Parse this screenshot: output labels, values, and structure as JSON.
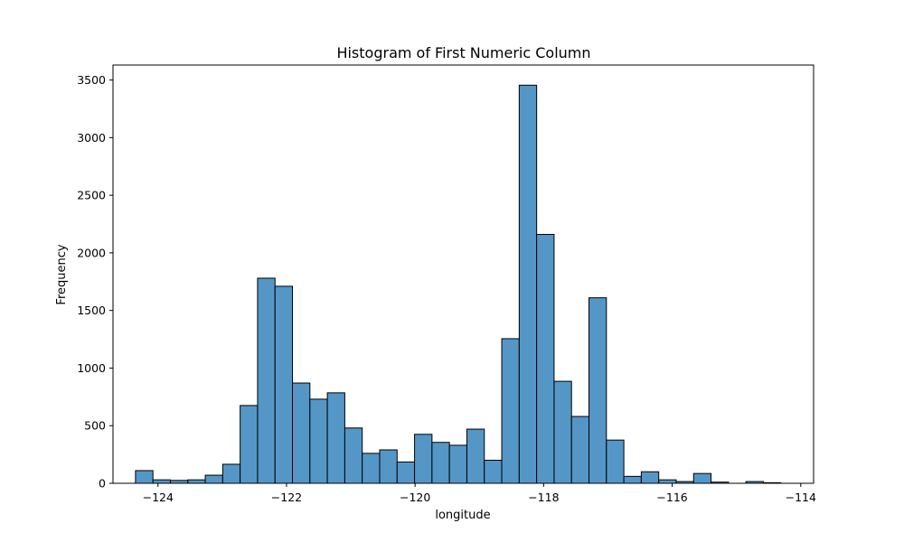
{
  "colors": {
    "bar_fill": "#5497c7",
    "bar_edge": "#000000",
    "axis": "#000000"
  },
  "chart_data": {
    "type": "bar",
    "title": "Histogram of First Numeric Column",
    "xlabel": "longitude",
    "ylabel": "Frequency",
    "xlim": [
      -124.7,
      -113.8
    ],
    "ylim": [
      0,
      3630
    ],
    "grid": false,
    "x_ticks": [
      -124,
      -122,
      -120,
      -118,
      -116,
      -114
    ],
    "x_tick_labels": [
      "−124",
      "−122",
      "−120",
      "−118",
      "−116",
      "−114"
    ],
    "y_ticks": [
      0,
      500,
      1000,
      1500,
      2000,
      2500,
      3000,
      3500
    ],
    "y_tick_labels": [
      "0",
      "500",
      "1000",
      "1500",
      "2000",
      "2500",
      "3000",
      "3500"
    ],
    "bin_start": -124.35,
    "bin_end": -114.31,
    "values": [
      110,
      30,
      25,
      30,
      70,
      165,
      675,
      1780,
      1710,
      870,
      730,
      785,
      480,
      260,
      290,
      185,
      425,
      355,
      330,
      470,
      200,
      1255,
      3455,
      2160,
      885,
      580,
      1610,
      375,
      60,
      100,
      30,
      15,
      85,
      10,
      0,
      15,
      5
    ]
  }
}
